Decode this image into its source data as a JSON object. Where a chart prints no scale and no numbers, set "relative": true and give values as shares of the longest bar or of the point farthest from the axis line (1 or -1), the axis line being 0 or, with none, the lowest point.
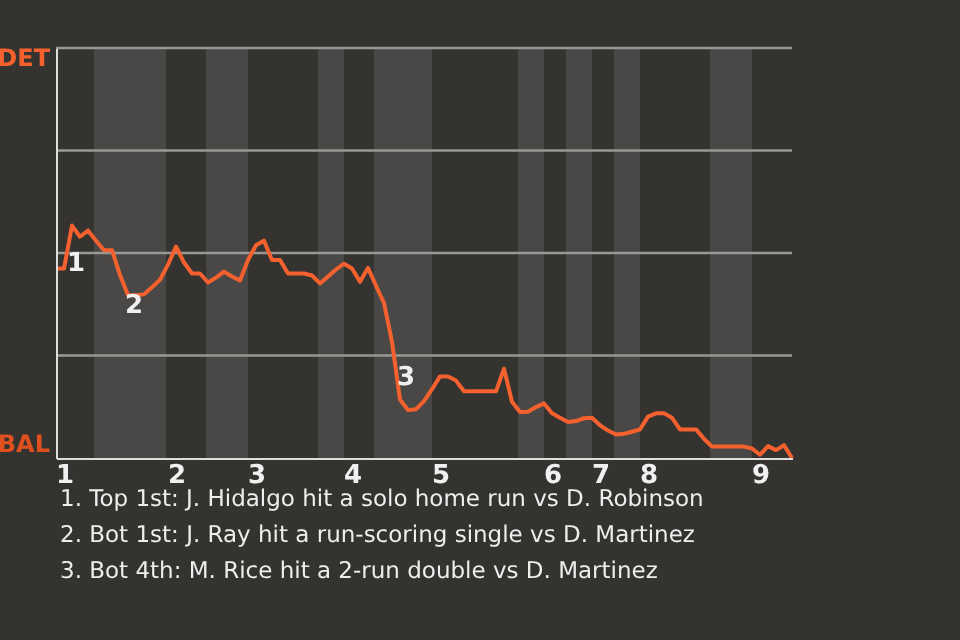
{
  "chart_data": {
    "type": "line",
    "relative": true,
    "categories": [
      null,
      "1",
      null,
      null,
      null,
      null,
      null,
      null,
      null,
      null,
      null,
      null,
      null,
      null,
      null,
      "2",
      null,
      null,
      null,
      null,
      null,
      null,
      null,
      null,
      null,
      "3",
      null,
      null,
      null,
      null,
      null,
      null,
      null,
      null,
      null,
      null,
      null,
      "4",
      null,
      null,
      null,
      null,
      null,
      null,
      null,
      null,
      null,
      null,
      "5",
      null,
      null,
      null,
      null,
      null,
      null,
      null,
      null,
      null,
      null,
      null,
      null,
      null,
      "6",
      null,
      null,
      null,
      null,
      null,
      "7",
      null,
      null,
      null,
      null,
      null,
      "8",
      null,
      null,
      null,
      null,
      null,
      null,
      null,
      null,
      null,
      null,
      null,
      null,
      null,
      "9",
      null,
      null,
      null,
      null
    ],
    "series": [
      {
        "color": "#f4612e",
        "values": [
          0.815,
          0.815,
          1,
          0.952,
          0.979,
          0.935,
          0.894,
          0.894,
          0.787,
          0.7,
          0.7,
          0.704,
          0.735,
          0.767,
          0.832,
          0.91,
          0.841,
          0.794,
          0.794,
          0.755,
          0.776,
          0.802,
          0.781,
          0.764,
          0.852,
          0.915,
          0.935,
          0.852,
          0.852,
          0.794,
          0.794,
          0.794,
          0.785,
          0.751,
          0.781,
          0.811,
          0.836,
          0.815,
          0.758,
          0.818,
          0.741,
          0.667,
          0.499,
          0.252,
          0.206,
          0.21,
          0.245,
          0.296,
          0.351,
          0.351,
          0.333,
          0.287,
          0.287,
          0.287,
          0.287,
          0.287,
          0.384,
          0.242,
          0.198,
          0.199,
          0.219,
          0.235,
          0.192,
          0.173,
          0.155,
          0.159,
          0.171,
          0.173,
          0.141,
          0.118,
          0.101,
          0.104,
          0.113,
          0.123,
          0.178,
          0.192,
          0.192,
          0.173,
          0.123,
          0.123,
          0.123,
          0.083,
          0.049,
          0.049,
          0.049,
          0.049,
          0.049,
          0.041,
          0.014,
          0.051,
          0.034,
          0.055,
          0
        ]
      }
    ],
    "ref_lines": [
      {
        "axis": "y",
        "value": 0.441,
        "color": "#9a9896"
      },
      {
        "axis": "y",
        "value": 0.882,
        "color": "#9a9896"
      },
      {
        "axis": "y",
        "value": 1.323,
        "color": "#9a9896"
      },
      {
        "axis": "y",
        "value": 1.764,
        "color": "#9a9896"
      }
    ],
    "annotations": [
      "DET",
      "BAL",
      "1",
      "2",
      "3",
      "1. Top 1st: J. Hidalgo hit a solo home run vs D. Robinson",
      "2. Bot 1st: J. Ray hit a run-scoring single vs D. Martinez",
      "3. Bot 4th: M. Rice hit a 2-run double vs D. Martinez"
    ]
  }
}
